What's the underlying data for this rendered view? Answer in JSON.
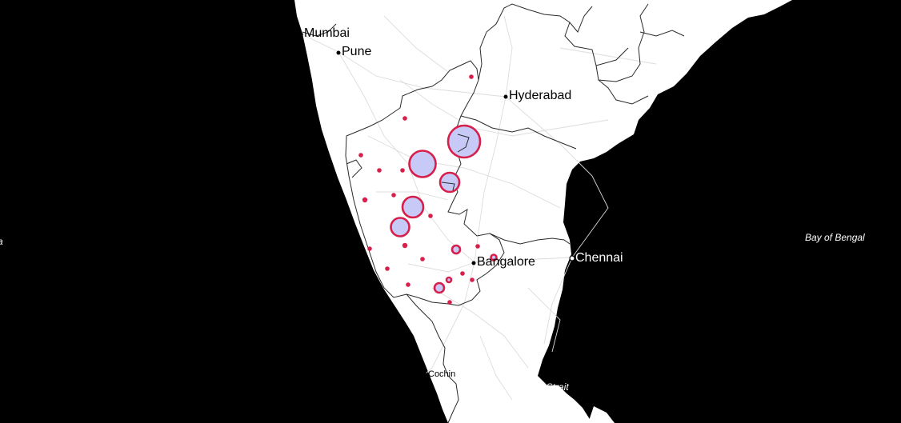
{
  "colors": {
    "sea": "#000000",
    "land": "#ffffff",
    "border": "#333333",
    "road": "#d8d8d8",
    "marker_stroke": "#d61f4a",
    "marker_fill": "#c7c9f7",
    "dot": "#d61f4a"
  },
  "cities": [
    {
      "id": "mumbai",
      "name": "Mumbai"
    },
    {
      "id": "pune",
      "name": "Pune"
    },
    {
      "id": "hyderabad",
      "name": "Hyderabad"
    },
    {
      "id": "bangalore",
      "name": "Bangalore"
    },
    {
      "id": "chennai",
      "name": "Chennai"
    },
    {
      "id": "cochin",
      "name": "Cochin"
    }
  ],
  "water_labels": {
    "bay_of_bengal": "Bay of Bengal",
    "palk_strait": "Palk Strait",
    "arabian_sea_fragment": "a"
  }
}
